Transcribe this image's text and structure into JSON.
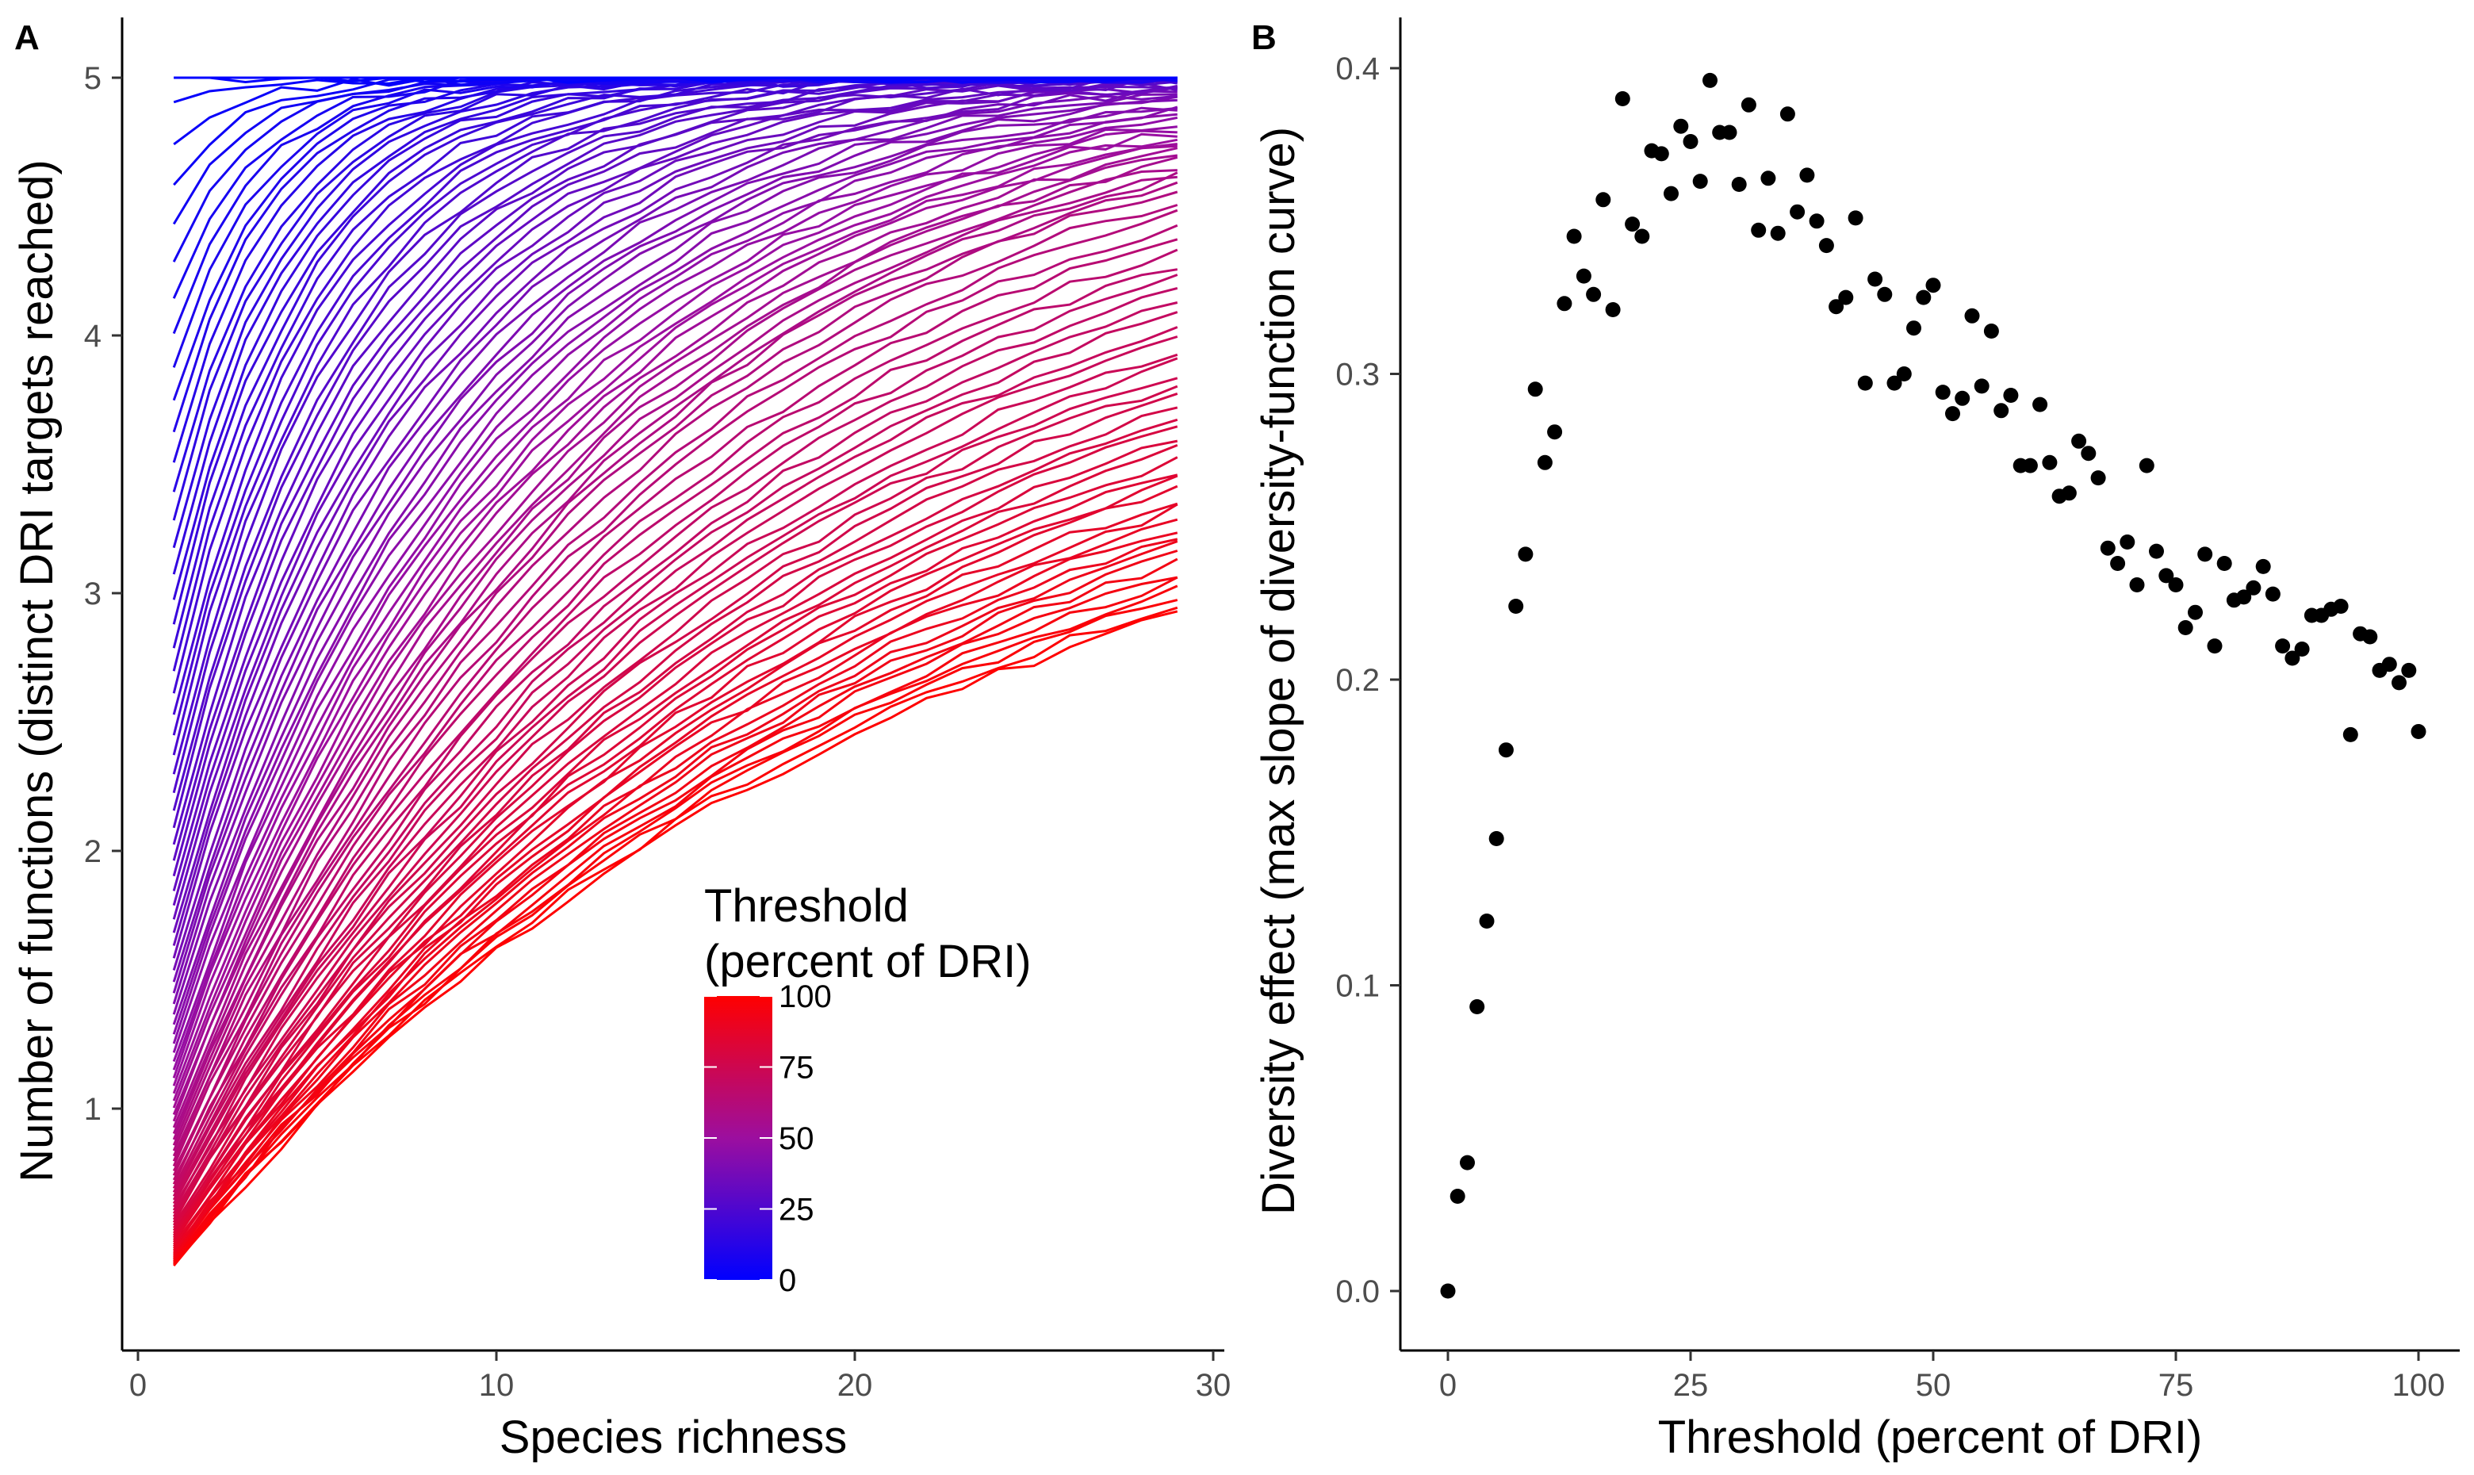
{
  "figure": {
    "panels": [
      "A",
      "B"
    ]
  },
  "chart_data": [
    {
      "panel": "A",
      "type": "line",
      "xlabel": "Species richness",
      "ylabel": "Number of functions (distinct DRI targets reached)",
      "xlim": [
        0,
        30
      ],
      "ylim": [
        0,
        5
      ],
      "xticks": [
        0,
        10,
        20,
        30
      ],
      "yticks": [
        1,
        2,
        3,
        4,
        5
      ],
      "grid": false,
      "x": [
        1,
        2,
        3,
        4,
        5,
        6,
        7,
        8,
        9,
        10,
        11,
        12,
        13,
        14,
        15,
        16,
        17,
        18,
        19,
        20,
        21,
        22,
        23,
        24,
        25,
        26,
        27,
        28,
        29
      ],
      "series_note_threshold_range": [
        0,
        100
      ],
      "endpoints": {
        "threshold_0": {
          "start": 5.0,
          "end": 5.0
        },
        "threshold_50": {
          "start": 1.0,
          "end": 4.7
        },
        "threshold_75": {
          "start": 0.5,
          "end": 4.0
        },
        "threshold_100": {
          "start": 0.27,
          "end": 2.83
        }
      },
      "legend": {
        "title_line1": "Threshold",
        "title_line2": "(percent of DRI)",
        "labels": [
          "100",
          "75",
          "50",
          "25",
          "0"
        ],
        "low_color": "#0000ff",
        "high_color": "#ff0000",
        "placement": "bottom-right"
      }
    },
    {
      "panel": "B",
      "type": "scatter",
      "xlabel": "Threshold (percent of DRI)",
      "ylabel": "Diversity effect (max slope of diversity-function curve)",
      "xlim": [
        0,
        100
      ],
      "ylim": [
        0.0,
        0.4
      ],
      "xticks": [
        0,
        25,
        50,
        75,
        100
      ],
      "yticks": [
        "0.0",
        "0.1",
        "0.2",
        "0.3",
        "0.4"
      ],
      "grid": false,
      "point_color": "#000000",
      "x": [
        0,
        1,
        2,
        3,
        4,
        5,
        6,
        7,
        8,
        9,
        10,
        11,
        12,
        13,
        14,
        15,
        16,
        17,
        18,
        19,
        20,
        21,
        22,
        23,
        24,
        25,
        26,
        27,
        28,
        29,
        30,
        31,
        32,
        33,
        34,
        35,
        36,
        37,
        38,
        39,
        40,
        41,
        42,
        43,
        44,
        45,
        46,
        47,
        48,
        49,
        50,
        51,
        52,
        53,
        54,
        55,
        56,
        57,
        58,
        59,
        60,
        61,
        62,
        63,
        64,
        65,
        66,
        67,
        68,
        69,
        70,
        71,
        72,
        73,
        74,
        75,
        76,
        77,
        78,
        79,
        80,
        81,
        82,
        83,
        84,
        85,
        86,
        87,
        88,
        89,
        90,
        91,
        92,
        93,
        94,
        95,
        96,
        97,
        98,
        99,
        100
      ],
      "y": [
        0.0,
        0.031,
        0.042,
        0.093,
        0.121,
        0.148,
        0.177,
        0.224,
        0.241,
        0.295,
        0.271,
        0.281,
        0.323,
        0.345,
        0.332,
        0.326,
        0.357,
        0.321,
        0.39,
        0.349,
        0.345,
        0.373,
        0.372,
        0.359,
        0.381,
        0.376,
        0.363,
        0.396,
        0.379,
        0.379,
        0.362,
        0.388,
        0.347,
        0.364,
        0.346,
        0.385,
        0.353,
        0.365,
        0.35,
        0.342,
        0.322,
        0.325,
        0.351,
        0.297,
        0.331,
        0.326,
        0.297,
        0.3,
        0.315,
        0.325,
        0.329,
        0.294,
        0.287,
        0.292,
        0.319,
        0.296,
        0.314,
        0.288,
        0.293,
        0.27,
        0.27,
        0.29,
        0.271,
        0.26,
        0.261,
        0.278,
        0.274,
        0.266,
        0.243,
        0.238,
        0.245,
        0.231,
        0.27,
        0.242,
        0.234,
        0.231,
        0.217,
        0.222,
        0.241,
        0.211,
        0.238,
        0.226,
        0.227,
        0.23,
        0.237,
        0.228,
        0.211,
        0.207,
        0.21,
        0.221,
        0.221,
        0.223,
        0.224,
        0.182,
        0.215,
        0.214,
        0.203,
        0.205,
        0.199,
        0.203,
        0.183
      ]
    }
  ]
}
